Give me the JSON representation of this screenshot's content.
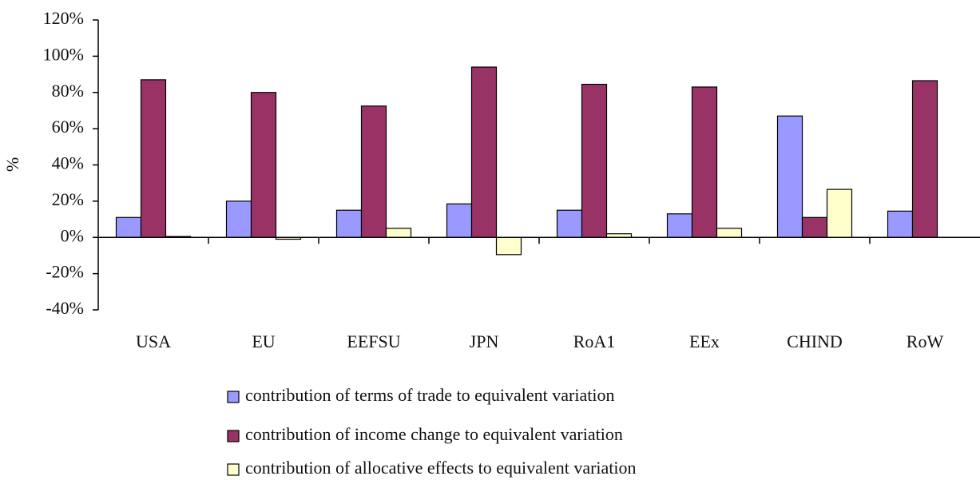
{
  "chart_data": {
    "type": "bar",
    "ylabel": "%",
    "categories": [
      "USA",
      "EU",
      "EEFSU",
      "JPN",
      "RoA1",
      "EEx",
      "CHIND",
      "RoW"
    ],
    "series": [
      {
        "name": "contribution of terms of trade to equivalent variation",
        "color": "#9999ff",
        "values": [
          11,
          20,
          15,
          18.5,
          15,
          13,
          67,
          14.5
        ]
      },
      {
        "name": "contribution of income change to equivalent variation",
        "color": "#993366",
        "values": [
          87,
          80,
          72.5,
          94,
          84.5,
          83,
          11,
          86.5
        ]
      },
      {
        "name": "contribution of allocative effects to equivalent variation",
        "color": "#ffffcc",
        "values": [
          0.5,
          -1,
          5,
          -9.5,
          2,
          5,
          26.5,
          0
        ]
      }
    ],
    "ylim": [
      -40,
      120
    ],
    "yticks": [
      {
        "value": -40,
        "label": "-40%"
      },
      {
        "value": -20,
        "label": "-20%"
      },
      {
        "value": 0,
        "label": "0%"
      },
      {
        "value": 20,
        "label": "20%"
      },
      {
        "value": 40,
        "label": "40%"
      },
      {
        "value": 60,
        "label": "60%"
      },
      {
        "value": 80,
        "label": "80%"
      },
      {
        "value": 100,
        "label": "100%"
      },
      {
        "value": 120,
        "label": "120%"
      }
    ],
    "legend": "bottom"
  }
}
